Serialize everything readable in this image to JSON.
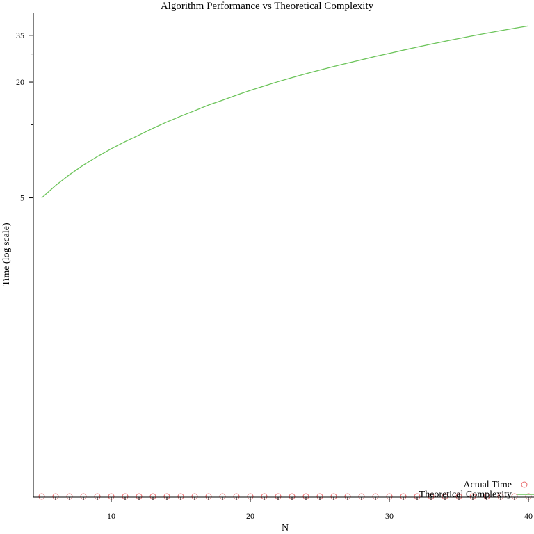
{
  "chart_data": {
    "type": "scatter",
    "title": "Algorithm Performance vs Theoretical Complexity",
    "xlabel": "N",
    "ylabel": "Time (log scale)",
    "xlim": [
      5,
      40
    ],
    "ylim": [
      0.14,
      46
    ],
    "y_scale": "log",
    "x_ticks_major": [
      10,
      20,
      30,
      40
    ],
    "x_ticks_minor": [
      6,
      7,
      8,
      9,
      11,
      12,
      13,
      14,
      15,
      16,
      17,
      18,
      19,
      21,
      22,
      23,
      24,
      25,
      26,
      27,
      28,
      29,
      31,
      32,
      33,
      34,
      35,
      36,
      37,
      38,
      39
    ],
    "y_ticks_major": [
      5,
      20,
      35
    ],
    "y_ticks_minor": [
      12,
      28
    ],
    "grid": false,
    "legend_position": "bottom-right",
    "colors": {
      "actual": "#e8686a",
      "theoretical": "#6cc45a",
      "axis": "#000000"
    },
    "series": [
      {
        "name": "Actual Time",
        "kind": "scatter",
        "x": [
          5,
          6,
          7,
          8,
          9,
          10,
          11,
          12,
          13,
          14,
          15,
          16,
          17,
          18,
          19,
          20,
          21,
          22,
          23,
          24,
          25,
          26,
          27,
          28,
          29,
          30,
          31,
          32,
          33,
          34,
          35,
          36,
          37,
          38,
          39,
          40
        ],
        "y": [
          0.14,
          0.14,
          0.14,
          0.14,
          0.14,
          0.14,
          0.14,
          0.14,
          0.14,
          0.14,
          0.14,
          0.14,
          0.14,
          0.14,
          0.14,
          0.14,
          0.14,
          0.14,
          0.14,
          0.14,
          0.14,
          0.14,
          0.14,
          0.14,
          0.14,
          0.14,
          0.14,
          0.14,
          0.14,
          0.14,
          0.14,
          0.14,
          0.14,
          0.14,
          0.14,
          0.14
        ]
      },
      {
        "name": "Theoretical Complexity",
        "kind": "line",
        "x": [
          5,
          6,
          7,
          8,
          9,
          10,
          11,
          12,
          13,
          14,
          15,
          16,
          17,
          18,
          19,
          20,
          21,
          22,
          23,
          24,
          25,
          26,
          27,
          28,
          29,
          30,
          31,
          32,
          33,
          34,
          35,
          36,
          37,
          38,
          39,
          40
        ],
        "y": [
          5,
          5.8,
          6.6,
          7.4,
          8.2,
          9,
          9.8,
          10.6,
          11.5,
          12.4,
          13.3,
          14.2,
          15.2,
          16.1,
          17.1,
          18.1,
          19.1,
          20.1,
          21.1,
          22.1,
          23.1,
          24.1,
          25.1,
          26.1,
          27.2,
          28.2,
          29.3,
          30.4,
          31.5,
          32.6,
          33.7,
          34.8,
          35.9,
          37.0,
          38.1,
          39.2
        ]
      }
    ]
  }
}
